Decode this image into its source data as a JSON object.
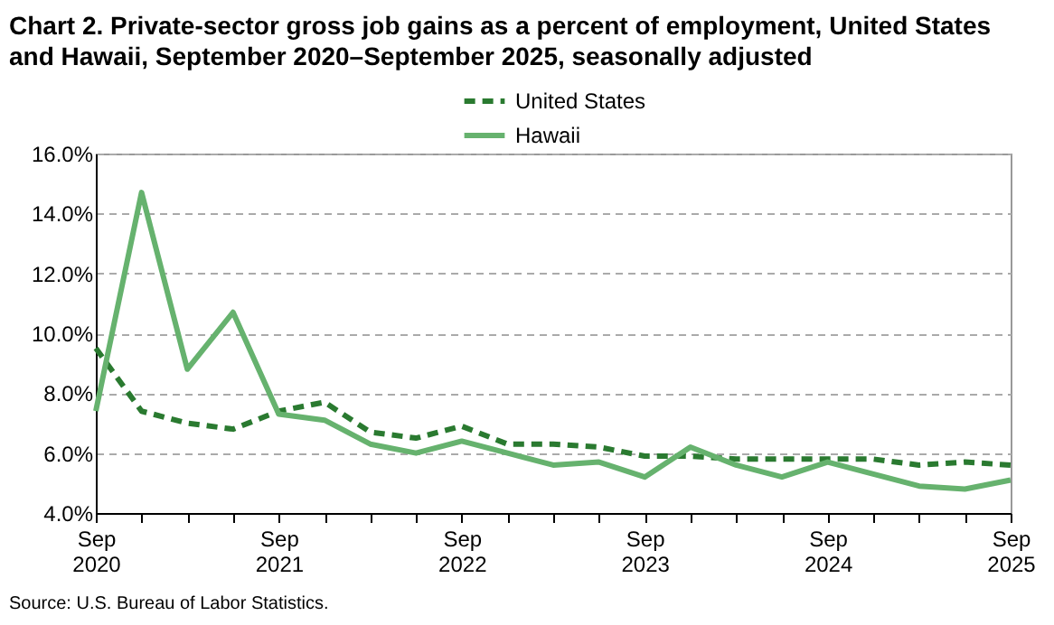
{
  "chart_data": {
    "type": "line",
    "title": "Chart 2. Private-sector gross job gains as a percent of employment, United States and Hawaii, September 2020–September 2025, seasonally adjusted",
    "categories": [
      "Sep 2020",
      null,
      null,
      null,
      "Sep 2021",
      null,
      null,
      null,
      "Sep 2022",
      null,
      null,
      null,
      "Sep 2023",
      null,
      null,
      null,
      "Sep 2024",
      null,
      null,
      null,
      "Sep 2025"
    ],
    "series": [
      {
        "name": "United States",
        "color": "#2a7a30",
        "line_style": "dashed",
        "values": [
          9.5,
          7.4,
          7.0,
          6.8,
          7.4,
          7.7,
          6.7,
          6.5,
          6.9,
          6.3,
          6.3,
          6.2,
          5.9,
          5.9,
          5.8,
          5.8,
          5.8,
          5.8,
          5.6,
          5.7,
          5.6
        ]
      },
      {
        "name": "Hawaii",
        "color": "#66b26e",
        "line_style": "solid",
        "values": [
          7.4,
          14.7,
          8.8,
          10.7,
          7.3,
          7.1,
          6.3,
          6.0,
          6.4,
          6.0,
          5.6,
          5.7,
          5.2,
          6.2,
          5.6,
          5.2,
          5.7,
          5.3,
          4.9,
          4.8,
          5.1
        ]
      }
    ],
    "ylim": [
      4,
      16
    ],
    "yticks": [
      {
        "value": 4,
        "label": "4.0%"
      },
      {
        "value": 6,
        "label": "6.0%"
      },
      {
        "value": 8,
        "label": "8.0%"
      },
      {
        "value": 10,
        "label": "10.0%"
      },
      {
        "value": 12,
        "label": "12.0%"
      },
      {
        "value": 14,
        "label": "14.0%"
      },
      {
        "value": 16,
        "label": "16.0%"
      }
    ],
    "grid": "y",
    "legend": "top",
    "annotations": [
      "Source: U.S. Bureau of Labor Statistics."
    ]
  }
}
